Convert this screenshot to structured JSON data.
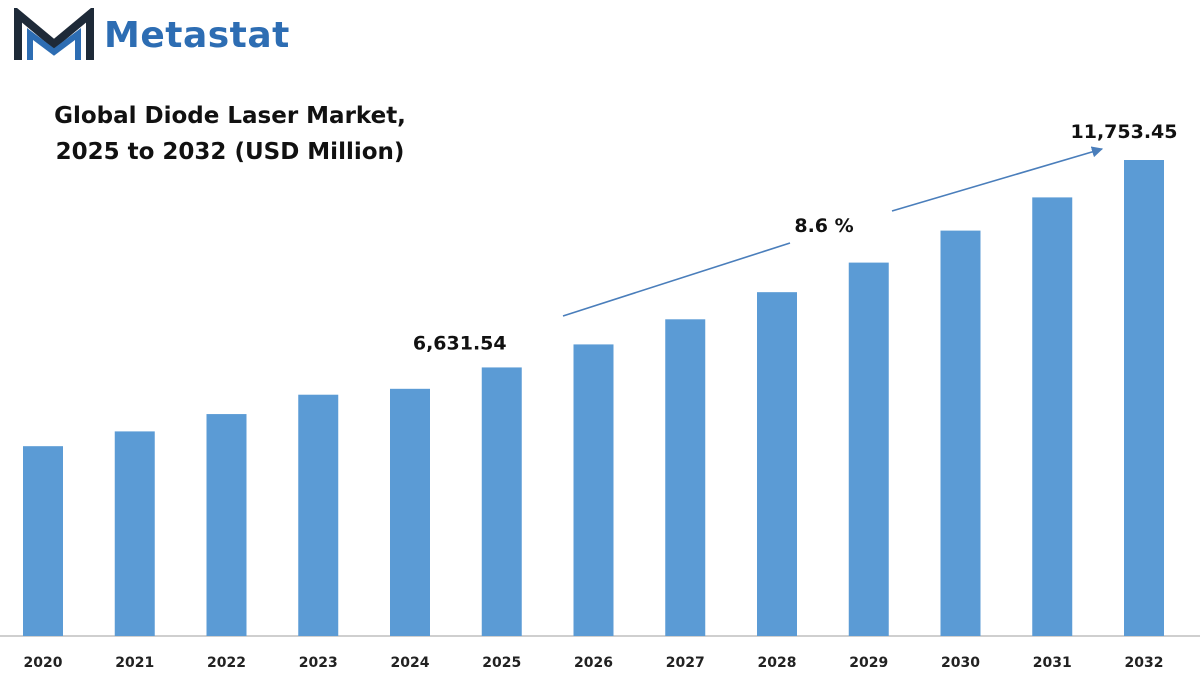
{
  "brand": {
    "name": "Metastat",
    "logo_icon": "metastat-m-icon",
    "color": "#2d6db3",
    "logo_dark": "#1e2a38"
  },
  "chart_data": {
    "type": "bar",
    "title_lines": [
      "Global Diode Laser Market,",
      "2025 to 2032 (USD Million)"
    ],
    "categories": [
      "2020",
      "2021",
      "2022",
      "2023",
      "2024",
      "2025",
      "2026",
      "2027",
      "2028",
      "2029",
      "2030",
      "2031",
      "2032"
    ],
    "values": [
      4687,
      5052,
      5480,
      5958,
      6103.6,
      6631.54,
      7200,
      7820,
      8490,
      9220,
      10010,
      10830,
      11753.45
    ],
    "value_labels": {
      "2025": "6,631.54",
      "2032": "11,753.45"
    },
    "cagr_label": "8.6 %",
    "ylim": [
      0,
      12500
    ],
    "bar_color": "#5b9bd5",
    "arrow_color": "#4a7ebb",
    "grid": false,
    "legend": "none"
  }
}
